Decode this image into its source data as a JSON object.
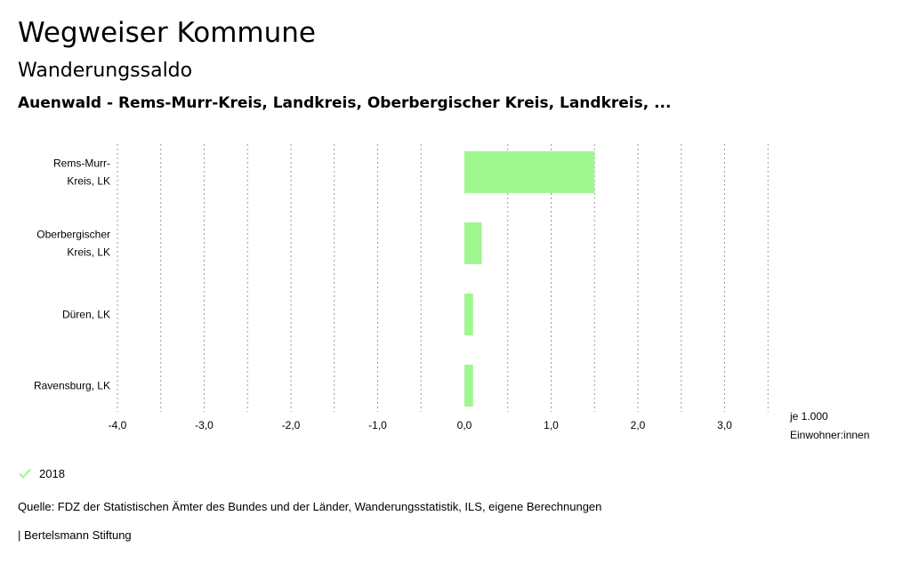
{
  "header": {
    "title": "Wegweiser Kommune",
    "subtitle": "Wanderungssaldo",
    "region": "Auenwald - Rems-Murr-Kreis, Landkreis, Oberbergischer Kreis, Landkreis, ..."
  },
  "chart_data": {
    "type": "bar",
    "orientation": "horizontal",
    "categories": [
      [
        "Rems-Murr-",
        "Kreis, LK"
      ],
      [
        "Oberbergischer",
        "Kreis, LK"
      ],
      [
        "Düren, LK"
      ],
      [
        "Ravensburg, LK"
      ]
    ],
    "series": [
      {
        "name": "2018",
        "values": [
          1.5,
          0.2,
          0.1,
          0.1
        ],
        "color": "#9ef78f"
      }
    ],
    "xlim": [
      -4.0,
      3.5
    ],
    "ticks": [
      -4.0,
      -3.0,
      -2.0,
      -1.0,
      0.0,
      1.0,
      2.0,
      3.0
    ],
    "tick_labels": [
      "-4,0",
      "-3,0",
      "-2,0",
      "-1,0",
      "0,0",
      "1,0",
      "2,0",
      "3,0"
    ],
    "gridlines": [
      -4.0,
      -3.5,
      -3.0,
      -2.5,
      -2.0,
      -1.5,
      -1.0,
      -0.5,
      0.5,
      1.0,
      1.5,
      2.0,
      2.5,
      3.0,
      3.5
    ],
    "unit_label": [
      "je 1.000",
      "Einwohner:innen"
    ],
    "grid": true
  },
  "legend": {
    "label": "2018",
    "color": "#9ef78f"
  },
  "footer": {
    "source": "Quelle: FDZ der Statistischen Ämter des Bundes und der Länder, Wanderungsstatistik, ILS, eigene Berechnungen",
    "credit": "| Bertelsmann Stiftung"
  }
}
